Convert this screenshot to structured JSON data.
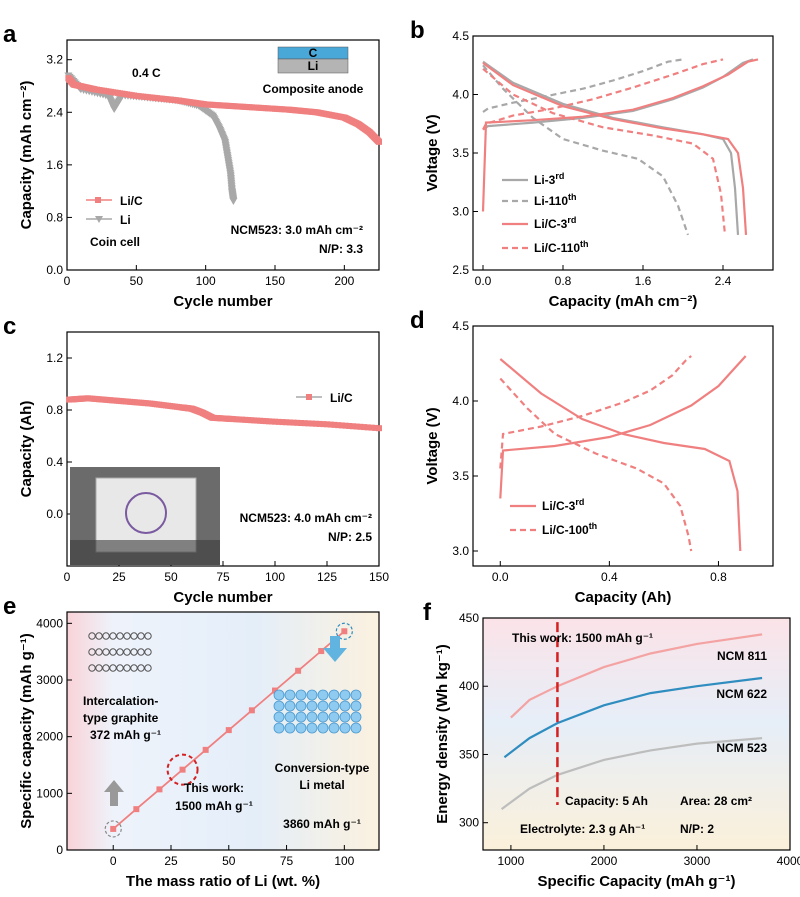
{
  "panels": {
    "a": {
      "label": "a",
      "xlabel": "Cycle number",
      "ylabel": "Capacity (mAh cm⁻²)",
      "xlim": [
        0,
        225
      ],
      "ylim": [
        0,
        3.5
      ],
      "xticks": [
        0,
        50,
        100,
        150,
        200
      ],
      "yticks": [
        0.0,
        0.8,
        1.6,
        2.4,
        3.2
      ],
      "rate": "0.4 C",
      "inset": {
        "top": "C",
        "bottom": "Li",
        "caption": "Composite anode"
      },
      "note1": "NCM523: 3.0 mAh cm⁻²",
      "note2": "N/P: 3.3",
      "note3": "Coin cell",
      "legend": [
        "Li/C",
        "Li"
      ]
    },
    "b": {
      "label": "b",
      "xlabel": "Capacity (mAh cm⁻²)",
      "ylabel": "Voltage (V)",
      "xlim": [
        -0.1,
        2.9
      ],
      "ylim": [
        2.5,
        4.5
      ],
      "xticks": [
        0.0,
        0.8,
        1.6,
        2.4
      ],
      "yticks": [
        2.5,
        3.0,
        3.5,
        4.0,
        4.5
      ],
      "legend": [
        {
          "base": "Li-3",
          "sup": "rd"
        },
        {
          "base": "Li-110",
          "sup": "th"
        },
        {
          "base": "Li/C-3",
          "sup": "rd"
        },
        {
          "base": "Li/C-110",
          "sup": "th"
        }
      ]
    },
    "c": {
      "label": "c",
      "xlabel": "Cycle number",
      "ylabel": "Capacity (Ah)",
      "xlim": [
        0,
        150
      ],
      "ylim": [
        -0.4,
        1.4
      ],
      "xticks": [
        0,
        25,
        50,
        75,
        100,
        125,
        150
      ],
      "yticks": [
        0.0,
        0.4,
        0.8,
        1.2
      ],
      "legend": [
        "Li/C"
      ],
      "note1": "NCM523: 4.0 mAh cm⁻²",
      "note2": "N/P: 2.5"
    },
    "d": {
      "label": "d",
      "xlabel": "Capacity (Ah)",
      "ylabel": "Voltage (V)",
      "xlim": [
        -0.1,
        1.0
      ],
      "ylim": [
        2.9,
        4.5
      ],
      "xticks": [
        0.0,
        0.4,
        0.8
      ],
      "yticks": [
        3.0,
        3.5,
        4.0,
        4.5
      ],
      "legend": [
        {
          "base": "Li/C-3",
          "sup": "rd"
        },
        {
          "base": "Li/C-100",
          "sup": "th"
        }
      ]
    },
    "e": {
      "label": "e",
      "xlabel": "The mass ratio of Li (wt. %)",
      "ylabel": "Specific capacity (mAh g⁻¹)",
      "xlim": [
        -20,
        115
      ],
      "ylim": [
        0,
        4200
      ],
      "xticks": [
        0,
        25,
        50,
        75,
        100
      ],
      "yticks": [
        0,
        1000,
        2000,
        3000,
        4000
      ],
      "t_graphite1": "Intercalation-",
      "t_graphite2": "type graphite",
      "t_graphite3": "372 mAh g⁻¹",
      "t_work1": "This work:",
      "t_work2": "1500 mAh g⁻¹",
      "t_li1": "Conversion-type",
      "t_li2": "Li metal",
      "t_li3": "3860 mAh g⁻¹"
    },
    "f": {
      "label": "f",
      "xlabel": "Specific Capacity (mAh g⁻¹)",
      "ylabel": "Energy density (Wh kg⁻¹)",
      "xlim": [
        700,
        4000
      ],
      "ylim": [
        280,
        450
      ],
      "xticks": [
        1000,
        2000,
        3000,
        4000
      ],
      "yticks": [
        300,
        350,
        400,
        450
      ],
      "work": "This work: 1500 mAh g⁻¹",
      "cap": "Capacity: 5 Ah",
      "area": "Area: 28 cm²",
      "elec": "Electrolyte: 2.3 g Ah⁻¹",
      "np": "N/P: 2"
    }
  },
  "colors": {
    "red": "#f08080",
    "gray": "#a8a8a8",
    "blue": "#2f8dc0",
    "lightred": "#f4a3a3",
    "lightgray": "#bdbdbd",
    "darkred": "#d42020"
  },
  "chart_data": [
    {
      "type": "scatter",
      "xlabel": "Cycle number",
      "ylabel": "Capacity (mAh cm⁻²)",
      "xlim": [
        0,
        225
      ],
      "ylim": [
        0,
        3.5
      ],
      "series": [
        {
          "name": "Li/C",
          "x": [
            1,
            5,
            20,
            50,
            80,
            100,
            130,
            160,
            180,
            200,
            210,
            218,
            225
          ],
          "y": [
            2.92,
            2.82,
            2.75,
            2.65,
            2.58,
            2.52,
            2.48,
            2.44,
            2.4,
            2.32,
            2.22,
            2.1,
            1.95
          ]
        },
        {
          "name": "Li",
          "x": [
            1,
            10,
            30,
            34,
            40,
            60,
            80,
            95,
            105,
            110,
            114,
            116,
            118,
            119,
            120
          ],
          "y": [
            2.96,
            2.75,
            2.65,
            2.45,
            2.66,
            2.62,
            2.58,
            2.5,
            2.35,
            2.15,
            1.95,
            1.7,
            1.45,
            1.2,
            1.05
          ]
        }
      ]
    },
    {
      "type": "line",
      "xlabel": "Capacity (mAh cm⁻²)",
      "ylabel": "Voltage (V)",
      "xlim": [
        -0.1,
        2.9
      ],
      "ylim": [
        2.5,
        4.5
      ],
      "series": [
        {
          "name": "Li-3rd charge",
          "x": [
            0,
            0.05,
            0.5,
            1.0,
            1.5,
            1.9,
            2.2,
            2.4,
            2.6,
            2.7
          ],
          "y": [
            3.7,
            3.73,
            3.76,
            3.8,
            3.86,
            3.96,
            4.06,
            4.15,
            4.27,
            4.3
          ]
        },
        {
          "name": "Li-3rd discharge",
          "x": [
            0,
            0.3,
            0.8,
            1.3,
            1.8,
            2.2,
            2.4,
            2.48,
            2.52,
            2.55
          ],
          "y": [
            4.28,
            4.1,
            3.92,
            3.8,
            3.72,
            3.66,
            3.62,
            3.5,
            3.2,
            2.8
          ]
        },
        {
          "name": "Li-110th charge",
          "x": [
            0,
            0.05,
            0.3,
            0.6,
            1.0,
            1.3,
            1.6,
            1.85,
            2.0
          ],
          "y": [
            3.85,
            3.88,
            3.93,
            3.98,
            4.05,
            4.12,
            4.2,
            4.28,
            4.3
          ]
        },
        {
          "name": "Li-110th discharge",
          "x": [
            0,
            0.2,
            0.5,
            0.8,
            1.2,
            1.55,
            1.8,
            1.95,
            2.05
          ],
          "y": [
            4.25,
            4.05,
            3.8,
            3.62,
            3.52,
            3.45,
            3.3,
            3.05,
            2.8
          ]
        },
        {
          "name": "Li/C-3rd charge",
          "x": [
            0,
            0.03,
            0.5,
            1.0,
            1.5,
            1.9,
            2.2,
            2.45,
            2.65,
            2.75
          ],
          "y": [
            3.0,
            3.76,
            3.78,
            3.81,
            3.87,
            3.97,
            4.07,
            4.17,
            4.28,
            4.3
          ]
        },
        {
          "name": "Li/C-3rd discharge",
          "x": [
            0,
            0.3,
            0.8,
            1.3,
            1.8,
            2.2,
            2.45,
            2.55,
            2.6,
            2.63
          ],
          "y": [
            4.27,
            4.08,
            3.9,
            3.79,
            3.71,
            3.66,
            3.62,
            3.5,
            3.2,
            2.8
          ]
        },
        {
          "name": "Li/C-110th charge",
          "x": [
            0,
            0.03,
            0.3,
            0.7,
            1.1,
            1.5,
            1.9,
            2.2,
            2.4
          ],
          "y": [
            3.7,
            3.75,
            3.82,
            3.88,
            3.96,
            4.06,
            4.17,
            4.26,
            4.3
          ]
        },
        {
          "name": "Li/C-110th discharge",
          "x": [
            0,
            0.3,
            0.7,
            1.2,
            1.7,
            2.1,
            2.3,
            2.38,
            2.42
          ],
          "y": [
            4.22,
            4.0,
            3.84,
            3.72,
            3.65,
            3.58,
            3.45,
            3.15,
            2.8
          ]
        }
      ]
    },
    {
      "type": "scatter",
      "xlabel": "Cycle number",
      "ylabel": "Capacity (Ah)",
      "xlim": [
        0,
        150
      ],
      "ylim": [
        -0.4,
        1.4
      ],
      "series": [
        {
          "name": "Li/C",
          "x": [
            1,
            10,
            25,
            40,
            55,
            60,
            65,
            70,
            80,
            100,
            125,
            150
          ],
          "y": [
            0.88,
            0.89,
            0.87,
            0.85,
            0.82,
            0.81,
            0.78,
            0.74,
            0.73,
            0.71,
            0.69,
            0.66
          ]
        }
      ]
    },
    {
      "type": "line",
      "xlabel": "Capacity (Ah)",
      "ylabel": "Voltage (V)",
      "xlim": [
        -0.1,
        1.0
      ],
      "ylim": [
        2.9,
        4.5
      ],
      "series": [
        {
          "name": "Li/C-3rd charge",
          "x": [
            0,
            0.01,
            0.2,
            0.4,
            0.55,
            0.7,
            0.8,
            0.9
          ],
          "y": [
            3.35,
            3.67,
            3.7,
            3.76,
            3.84,
            3.97,
            4.1,
            4.3
          ]
        },
        {
          "name": "Li/C-3rd discharge",
          "x": [
            0,
            0.15,
            0.3,
            0.45,
            0.6,
            0.75,
            0.84,
            0.87,
            0.88
          ],
          "y": [
            4.28,
            4.05,
            3.88,
            3.78,
            3.72,
            3.68,
            3.6,
            3.4,
            3.0
          ]
        },
        {
          "name": "Li/C-100th charge",
          "x": [
            0,
            0.01,
            0.15,
            0.3,
            0.45,
            0.55,
            0.63,
            0.68,
            0.7
          ],
          "y": [
            3.55,
            3.78,
            3.83,
            3.9,
            3.99,
            4.07,
            4.17,
            4.27,
            4.3
          ]
        },
        {
          "name": "Li/C-100th discharge",
          "x": [
            0,
            0.1,
            0.2,
            0.35,
            0.5,
            0.6,
            0.66,
            0.69,
            0.7
          ],
          "y": [
            4.15,
            3.95,
            3.78,
            3.65,
            3.55,
            3.45,
            3.3,
            3.1,
            3.0
          ]
        }
      ]
    },
    {
      "type": "line",
      "xlabel": "The mass ratio of Li (wt. %)",
      "ylabel": "Specific capacity (mAh g⁻¹)",
      "xlim": [
        -20,
        115
      ],
      "ylim": [
        0,
        4200
      ],
      "series": [
        {
          "name": "linear",
          "x": [
            0,
            10,
            20,
            30,
            40,
            50,
            60,
            70,
            80,
            90,
            100
          ],
          "y": [
            372,
            721,
            1070,
            1418,
            1767,
            2116,
            2465,
            2814,
            3163,
            3511,
            3860
          ]
        }
      ]
    },
    {
      "type": "line",
      "xlabel": "Specific Capacity (mAh g⁻¹)",
      "ylabel": "Energy density (Wh kg⁻¹)",
      "xlim": [
        700,
        4000
      ],
      "ylim": [
        280,
        450
      ],
      "series": [
        {
          "name": "NCM 811",
          "x": [
            1000,
            1200,
            1500,
            2000,
            2500,
            3000,
            3700
          ],
          "y": [
            377,
            390,
            400,
            414,
            424,
            431,
            438
          ]
        },
        {
          "name": "NCM 622",
          "x": [
            930,
            1200,
            1500,
            2000,
            2500,
            3000,
            3700
          ],
          "y": [
            348,
            362,
            373,
            386,
            395,
            400,
            406
          ]
        },
        {
          "name": "NCM 523",
          "x": [
            900,
            1200,
            1500,
            2000,
            2500,
            3000,
            3700
          ],
          "y": [
            310,
            325,
            335,
            346,
            353,
            358,
            362
          ]
        }
      ]
    }
  ]
}
